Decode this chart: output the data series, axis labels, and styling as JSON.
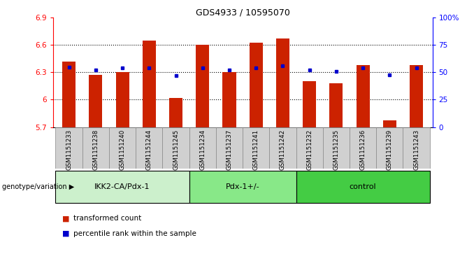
{
  "title": "GDS4933 / 10595070",
  "samples": [
    "GSM1151233",
    "GSM1151238",
    "GSM1151240",
    "GSM1151244",
    "GSM1151245",
    "GSM1151234",
    "GSM1151237",
    "GSM1151241",
    "GSM1151242",
    "GSM1151232",
    "GSM1151235",
    "GSM1151236",
    "GSM1151239",
    "GSM1151243"
  ],
  "red_values": [
    6.42,
    6.27,
    6.3,
    6.65,
    6.02,
    6.6,
    6.3,
    6.63,
    6.67,
    6.2,
    6.18,
    6.38,
    5.77,
    6.38
  ],
  "blue_values": [
    55,
    52,
    54,
    54,
    47,
    54,
    52,
    54,
    56,
    52,
    51,
    54,
    48,
    54
  ],
  "ylim_left": [
    5.7,
    6.9
  ],
  "ylim_right": [
    0,
    100
  ],
  "yticks_left": [
    5.7,
    6.0,
    6.3,
    6.6,
    6.9
  ],
  "ytick_labels_left": [
    "5.7",
    "6",
    "6.3",
    "6.6",
    "6.9"
  ],
  "yticks_right": [
    0,
    25,
    50,
    75,
    100
  ],
  "ytick_labels_right": [
    "0",
    "25",
    "50",
    "75",
    "100%"
  ],
  "groups": [
    {
      "label": "IKK2-CA/Pdx-1",
      "start": 0,
      "end": 5,
      "color": "#ccf0cc"
    },
    {
      "label": "Pdx-1+/-",
      "start": 5,
      "end": 9,
      "color": "#88e888"
    },
    {
      "label": "control",
      "start": 9,
      "end": 14,
      "color": "#44cc44"
    }
  ],
  "bar_color": "#cc2200",
  "dot_color": "#0000cc",
  "baseline": 5.7,
  "genotype_label": "genotype/variation",
  "legend_items": [
    "transformed count",
    "percentile rank within the sample"
  ],
  "bar_width": 0.5,
  "sample_box_color": "#d0d0d0",
  "grid_dotted_color": "#000000"
}
